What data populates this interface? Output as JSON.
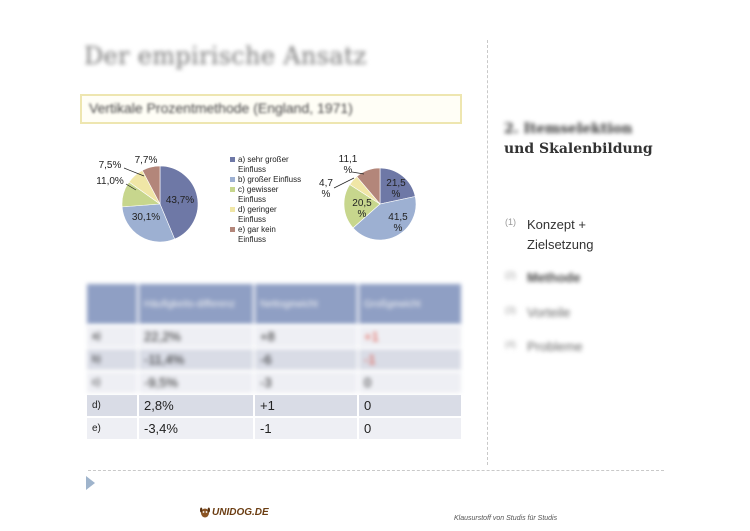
{
  "slide": {
    "title": "Der empirische Ansatz",
    "subtitle": "Vertikale Prozentmethode (England, 1971)"
  },
  "sidebar": {
    "heading_line1": "2. Itemselektion",
    "heading_line2": "und Skalenbildung",
    "items": [
      {
        "num": "(1)",
        "label_line1": "Konzept +",
        "label_line2": "Zielsetzung"
      },
      {
        "num": "(2)",
        "label_line1": "Methode",
        "label_line2": ""
      },
      {
        "num": "(3)",
        "label_line1": "Vorteile",
        "label_line2": ""
      },
      {
        "num": "(4)",
        "label_line1": "Probleme",
        "label_line2": ""
      }
    ]
  },
  "legend": [
    {
      "label": "a) sehr großer Einfluss",
      "color": "#6e78a6"
    },
    {
      "label": "b) großer Einfluss",
      "color": "#9db0d2"
    },
    {
      "label": "c) gewisser Einfluss",
      "color": "#c7d68d"
    },
    {
      "label": "d) geringer Einfluss",
      "color": "#f0e6a6"
    },
    {
      "label": "e) gar kein Einfluss",
      "color": "#b3867a"
    }
  ],
  "chart_data": [
    {
      "type": "pie",
      "categories": [
        "a) sehr großer Einfluss",
        "b) großer Einfluss",
        "c) gewisser Einfluss",
        "d) geringer Einfluss",
        "e) gar kein Einfluss"
      ],
      "values": [
        43.7,
        30.1,
        11.0,
        7.5,
        7.7
      ],
      "labels": [
        "43,7%",
        "30,1%",
        "11,0%",
        "7,5%",
        "7,7%"
      ],
      "colors": [
        "#6e78a6",
        "#9db0d2",
        "#c7d68d",
        "#f0e6a6",
        "#b3867a"
      ]
    },
    {
      "type": "pie",
      "categories": [
        "a) sehr großer Einfluss",
        "b) großer Einfluss",
        "c) gewisser Einfluss",
        "d) geringer Einfluss",
        "e) gar kein Einfluss"
      ],
      "values": [
        21.5,
        41.5,
        20.5,
        4.7,
        11.1
      ],
      "labels": [
        "21,5 %",
        "41,5 %",
        "20,5 %",
        "4,7 %",
        "11,1 %"
      ],
      "colors": [
        "#6e78a6",
        "#9db0d2",
        "#c7d68d",
        "#f0e6a6",
        "#b3867a"
      ]
    }
  ],
  "table": {
    "headers": [
      "",
      "Häufigkeits-differenz",
      "Nettogewicht",
      "Großgewicht"
    ],
    "rows": [
      {
        "k": "a)",
        "diff": "22,2%",
        "netto": "+8",
        "gross": "+1",
        "gross_color": "#e0493a"
      },
      {
        "k": "b)",
        "diff": "-11,4%",
        "netto": "-6",
        "gross": "-1",
        "gross_color": "#e0493a"
      },
      {
        "k": "c)",
        "diff": "-9,5%",
        "netto": "-3",
        "gross": "0",
        "gross_color": "#222222"
      },
      {
        "k": "d)",
        "diff": "2,8%",
        "netto": "+1",
        "gross": "0",
        "gross_color": "#222222"
      },
      {
        "k": "e)",
        "diff": "-3,4%",
        "netto": "-1",
        "gross": "0",
        "gross_color": "#222222"
      }
    ]
  },
  "footer": {
    "logo_text": "UNIDOG.DE",
    "text": "Klausurstoff von Studis für Studis"
  }
}
